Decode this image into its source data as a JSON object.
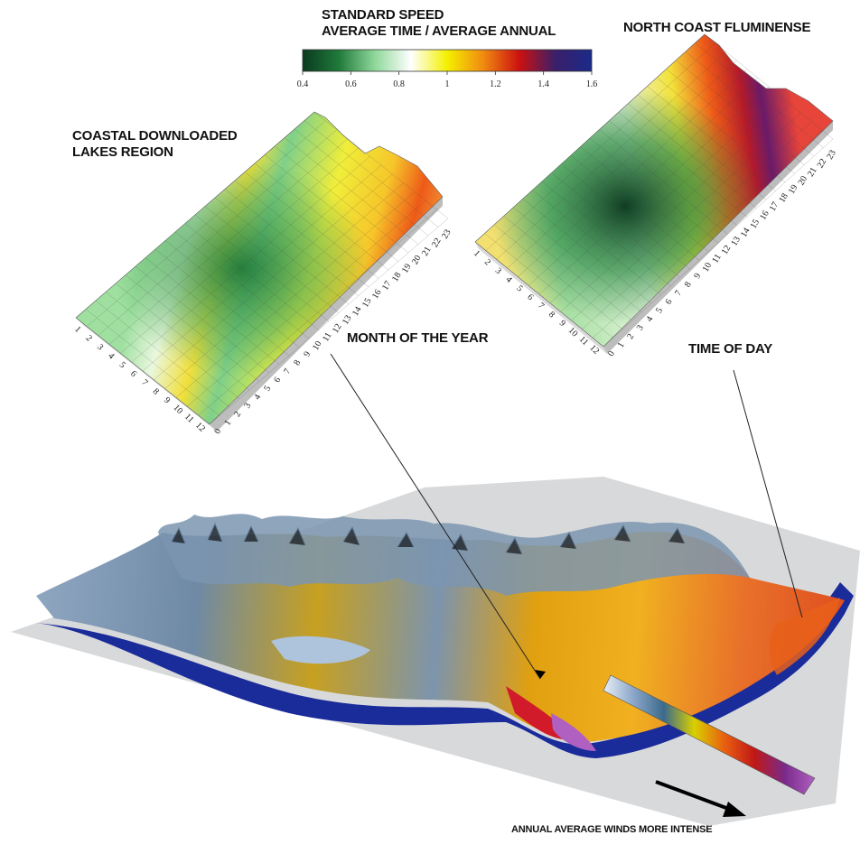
{
  "legend": {
    "title_line1": "STANDARD SPEED",
    "title_line2": "AVERAGE TIME / AVERAGE ANNUAL",
    "ticks": [
      "0.4",
      "0.6",
      "0.8",
      "1",
      "1.2",
      "1.4",
      "1.6"
    ],
    "colors": [
      "#0b3a1f",
      "#1f7a3a",
      "#8fd89a",
      "#ffffff",
      "#f4f000",
      "#f08a10",
      "#cc1010",
      "#3a1f6a",
      "#1a2b8a"
    ]
  },
  "panels": {
    "left": {
      "title_line1": "COASTAL DOWNLOADED",
      "title_line2": "LAKES REGION",
      "months": [
        "1",
        "2",
        "3",
        "4",
        "5",
        "6",
        "7",
        "8",
        "9",
        "10",
        "11",
        "12"
      ],
      "hours": [
        "0",
        "1",
        "2",
        "3",
        "4",
        "5",
        "6",
        "7",
        "8",
        "9",
        "10",
        "11",
        "12",
        "13",
        "14",
        "15",
        "16",
        "17",
        "18",
        "19",
        "20",
        "21",
        "22",
        "23"
      ]
    },
    "right": {
      "title": "NORTH COAST FLUMINENSE",
      "months": [
        "1",
        "2",
        "3",
        "4",
        "5",
        "6",
        "7",
        "8",
        "9",
        "10",
        "11",
        "12"
      ],
      "hours": [
        "0",
        "1",
        "2",
        "3",
        "4",
        "5",
        "6",
        "7",
        "8",
        "9",
        "10",
        "11",
        "12",
        "13",
        "14",
        "15",
        "16",
        "17",
        "18",
        "19",
        "20",
        "21",
        "22",
        "23"
      ]
    }
  },
  "callouts": {
    "month": "MONTH OF THE YEAR",
    "time": "TIME OF DAY"
  },
  "map": {
    "bottom_label": "ANNUAL AVERAGE WINDS MORE INTENSE",
    "scale_colors": [
      "#e8eef6",
      "#8aa6c8",
      "#3c6a8c",
      "#d8d000",
      "#e86010",
      "#c01818",
      "#7a2a8a",
      "#b060c0"
    ]
  }
}
